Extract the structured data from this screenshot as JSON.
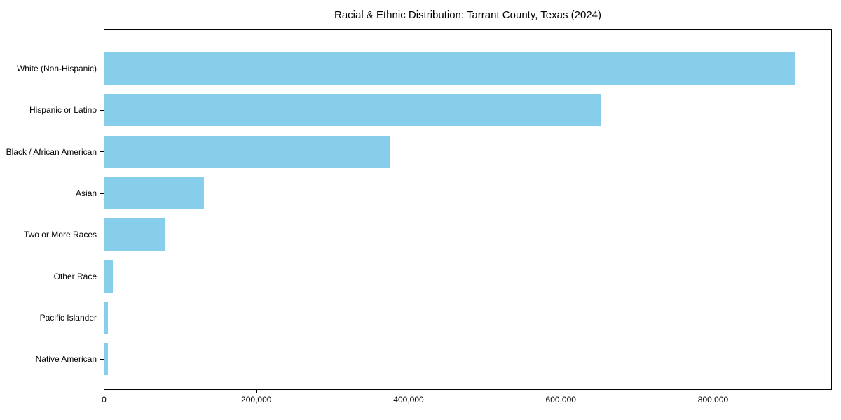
{
  "chart_data": {
    "type": "bar",
    "orientation": "horizontal",
    "title": "Racial & Ethnic Distribution: Tarrant County, Texas (2024)",
    "categories": [
      "White (Non-Hispanic)",
      "Hispanic or Latino",
      "Black / African American",
      "Asian",
      "Two or More Races",
      "Other Race",
      "Pacific Islander",
      "Native American"
    ],
    "values": [
      908000,
      653000,
      375000,
      131000,
      79000,
      11000,
      4300,
      4200
    ],
    "xlabel": "",
    "ylabel": "",
    "xlim": [
      0,
      955500
    ],
    "xticks": {
      "values": [
        0,
        200000,
        400000,
        600000,
        800000
      ],
      "labels": [
        "0",
        "200,000",
        "400,000",
        "600,000",
        "800,000"
      ]
    },
    "grid": false,
    "legend": "none",
    "bar_color": "#87ceeb",
    "background_color": "#ffffff",
    "frame_color": "#000000",
    "text_color": "#000000"
  }
}
